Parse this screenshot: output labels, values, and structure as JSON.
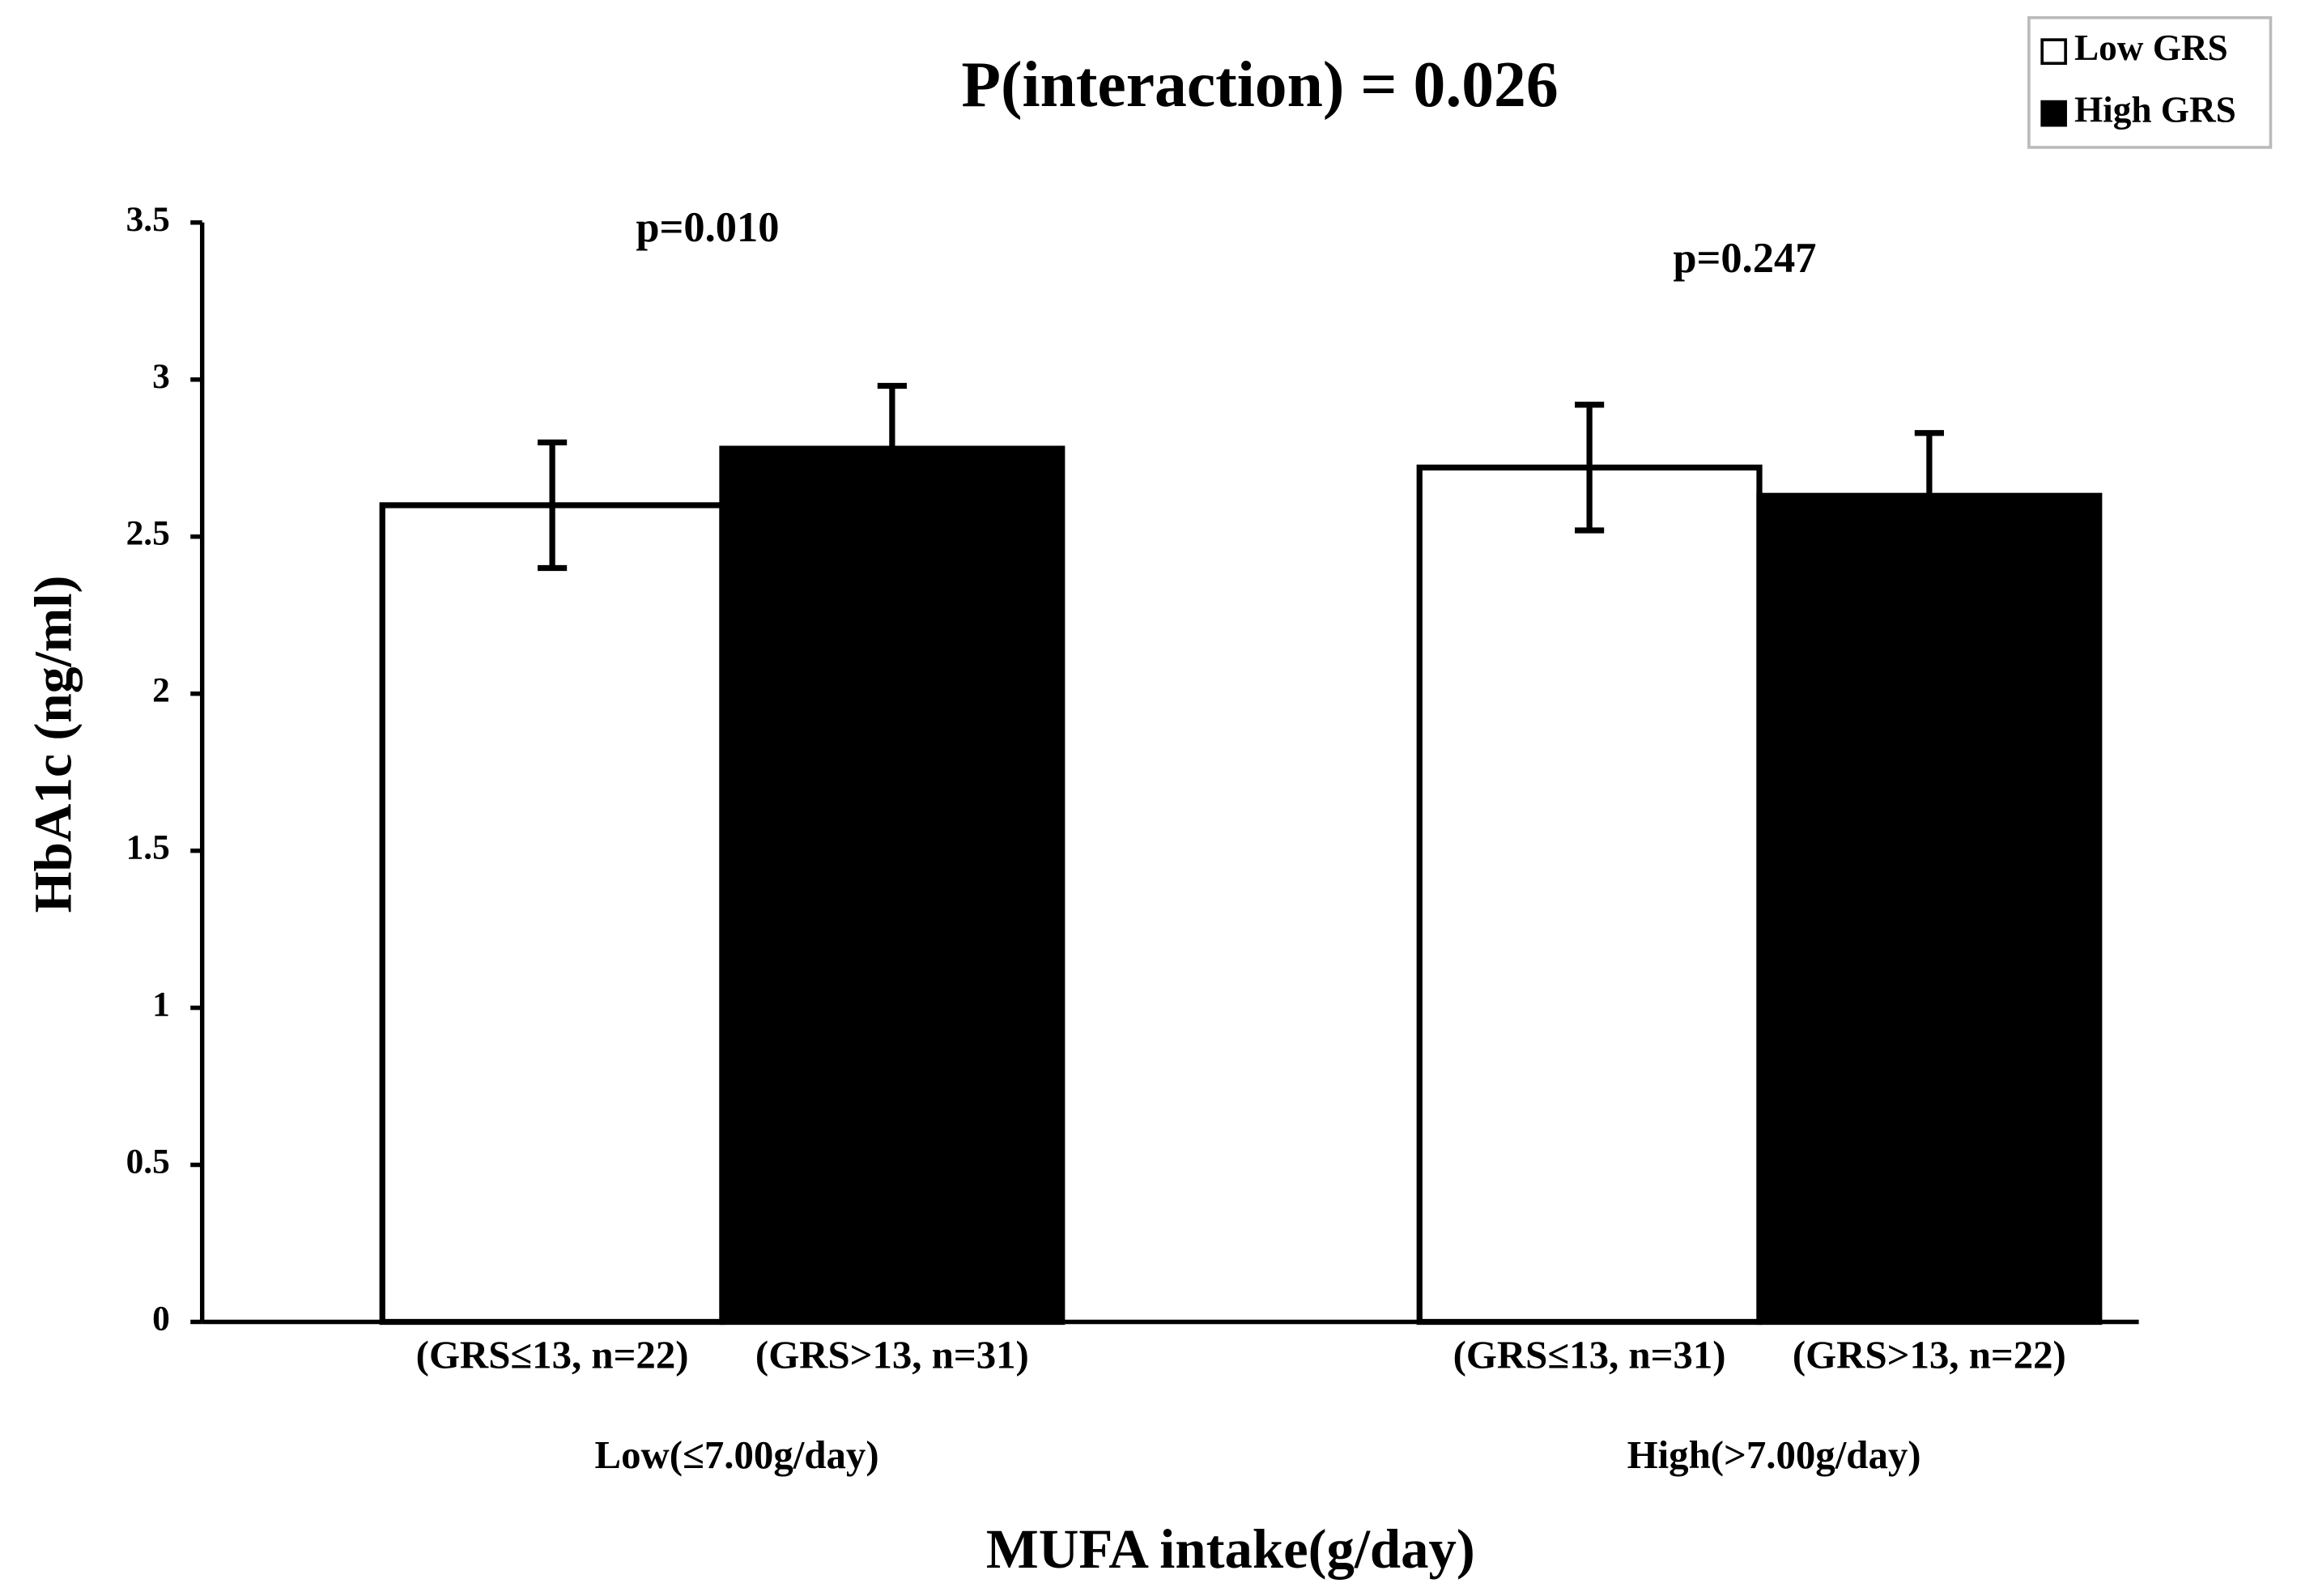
{
  "chart_data": {
    "type": "bar",
    "title": "P(interaction) = 0.026",
    "x_label": "MUFA intake(g/day)",
    "y_label": "HbA1c (ng/ml)",
    "categories": [
      "Low(≤7.00g/day)",
      "High(>7.00g/day)"
    ],
    "series": [
      {
        "name": "Low GRS",
        "color": "#ffffff",
        "values": [
          2.6,
          2.72
        ],
        "errors": [
          0.2,
          0.2
        ],
        "bar_labels": [
          "(GRS≤13, n=22)",
          "(GRS≤13, n=31)"
        ]
      },
      {
        "name": "High GRS",
        "color": "#000000",
        "values": [
          2.78,
          2.63
        ],
        "errors": [
          0.2,
          0.2
        ],
        "bar_labels": [
          "(GRS>13, n=31)",
          "(GRS>13, n=22)"
        ]
      }
    ],
    "annotations": [
      "p=0.010",
      "p=0.247"
    ],
    "ylim": [
      0,
      3.5
    ],
    "yticks": [
      0,
      0.5,
      1,
      1.5,
      2,
      2.5,
      3,
      3.5
    ],
    "grid": false,
    "legend": "top-right"
  }
}
